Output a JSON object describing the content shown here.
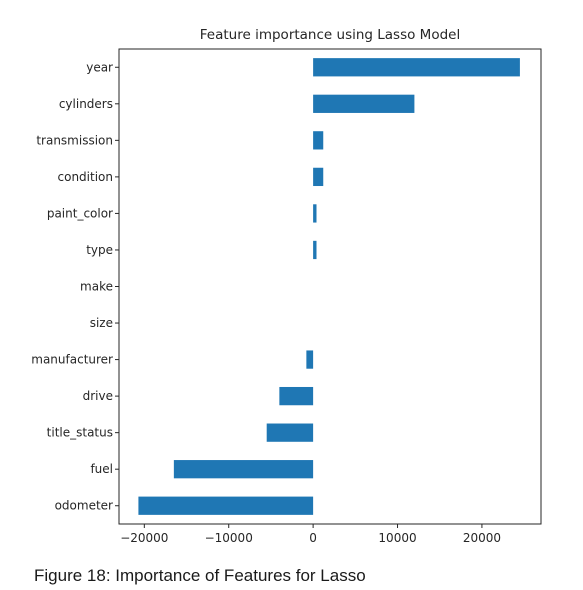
{
  "caption": "Figure 18: Importance of Features for Lasso",
  "chart_data": {
    "type": "bar",
    "orientation": "horizontal",
    "title": "Feature importance using Lasso Model",
    "xlabel": "",
    "ylabel": "",
    "categories": [
      "year",
      "cylinders",
      "transmission",
      "condition",
      "paint_color",
      "type",
      "make",
      "size",
      "manufacturer",
      "drive",
      "title_status",
      "fuel",
      "odometer"
    ],
    "values": [
      24500,
      12000,
      1200,
      1200,
      400,
      400,
      0,
      0,
      -800,
      -4000,
      -5500,
      -16500,
      -20700
    ],
    "xlim": [
      -23000,
      27000
    ],
    "xticks": [
      -20000,
      -10000,
      0,
      10000,
      20000
    ],
    "xtick_labels": [
      "−20000",
      "−10000",
      "0",
      "10000",
      "20000"
    ],
    "bar_color": "#1f77b4",
    "grid": false,
    "legend": false
  }
}
